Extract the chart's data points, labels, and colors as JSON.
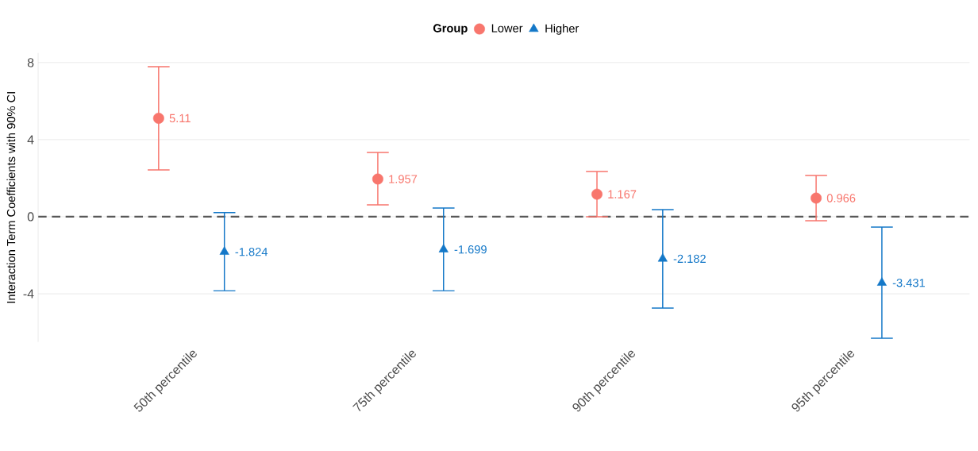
{
  "chart_data": {
    "type": "scatter",
    "ylabel": "Interaction Term Coefficients with 90% CI",
    "legend_title": "Group",
    "categories": [
      "50th percentile",
      "75th percentile",
      "90th percentile",
      "95th percentile"
    ],
    "series": [
      {
        "name": "Lower",
        "color": "#f8766d",
        "marker": "circle",
        "values": [
          5.11,
          1.957,
          1.167,
          0.966
        ],
        "errors": [
          [
            2.43,
            7.79
          ],
          [
            0.62,
            3.34
          ],
          [
            0.0,
            2.35
          ],
          [
            -0.21,
            2.14
          ]
        ]
      },
      {
        "name": "Higher",
        "color": "#1478c8",
        "marker": "triangle",
        "values": [
          -1.824,
          -1.699,
          -2.182,
          -3.431
        ],
        "errors": [
          [
            -3.84,
            0.21
          ],
          [
            -3.84,
            0.45
          ],
          [
            -4.74,
            0.37
          ],
          [
            -6.31,
            -0.54
          ]
        ]
      }
    ],
    "ylim": [
      -6.5,
      8.5
    ],
    "yticks": [
      -4,
      0,
      4,
      8
    ],
    "grid": "y",
    "legend": "top",
    "data_labels": true,
    "ref_lines": [
      {
        "axis": "y",
        "value": 0,
        "color": "#595959",
        "line_style": "dashed"
      }
    ]
  }
}
